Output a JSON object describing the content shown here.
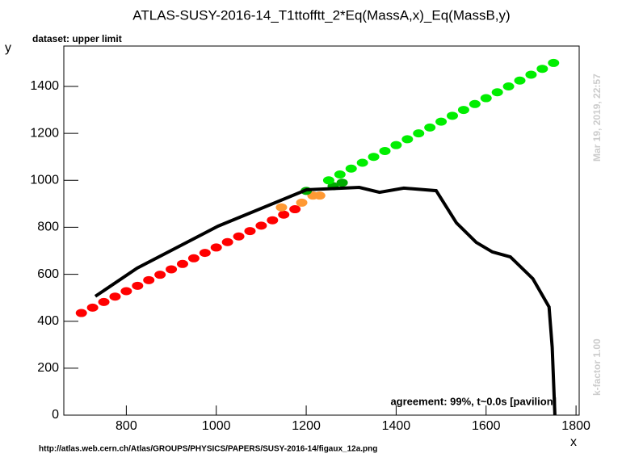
{
  "chart_data": {
    "type": "scatter",
    "title": "ATLAS-SUSY-2016-14_T1ttofftt_2*Eq(MassA,x)_Eq(MassB,y)",
    "subtitle": "dataset: upper limit",
    "xlabel": "x",
    "ylabel": "y",
    "annotations": [
      "agreement: 99%, t~0.0s [pavilion]",
      "Mar 19, 2019, 22:57",
      "k-factor 1.00",
      "http://atlas.web.cern.ch/Atlas/GROUPS/PHYSICS/PAPERS/SUSY-2016-14/figaux_12a.png"
    ],
    "xlim": [
      661,
      1807
    ],
    "ylim": [
      0,
      1572
    ],
    "xticks": [
      800,
      1000,
      1200,
      1400,
      1600,
      1800
    ],
    "yticks": [
      0,
      200,
      400,
      600,
      800,
      1000,
      1200,
      1400
    ],
    "series": [
      {
        "color": "#ff0000",
        "mode": "markers",
        "x": [
          700,
          725,
          750,
          775,
          800,
          825,
          850,
          875,
          900,
          925,
          950,
          975,
          1000,
          1025,
          1050,
          1075,
          1100,
          1125,
          1150,
          1175
        ],
        "values": [
          435,
          458,
          482,
          505,
          528,
          551,
          575,
          598,
          621,
          644,
          668,
          691,
          714,
          737,
          761,
          784,
          807,
          830,
          854,
          877
        ]
      },
      {
        "color": "#ff9933",
        "mode": "markers",
        "x": [
          1145,
          1190,
          1215,
          1230
        ],
        "values": [
          885,
          905,
          935,
          935
        ]
      },
      {
        "color": "#00aa00",
        "mode": "markers",
        "x": [
          1200,
          1260,
          1280
        ],
        "values": [
          955,
          975,
          990
        ]
      },
      {
        "color": "#00ee00",
        "mode": "markers",
        "x": [
          1250,
          1275,
          1300,
          1325,
          1350,
          1375,
          1400,
          1425,
          1450,
          1475,
          1500,
          1525,
          1550,
          1575,
          1600,
          1625,
          1650,
          1675,
          1700,
          1725,
          1750
        ],
        "values": [
          1000,
          1025,
          1050,
          1075,
          1100,
          1125,
          1150,
          1175,
          1200,
          1225,
          1250,
          1275,
          1300,
          1325,
          1350,
          1375,
          1400,
          1425,
          1450,
          1475,
          1500
        ]
      },
      {
        "color": "#000000",
        "mode": "line",
        "x": [
          731,
          824,
          1004,
          1201,
          1318,
          1363,
          1417,
          1489,
          1534,
          1578,
          1614,
          1654,
          1704,
          1740,
          1747,
          1753
        ],
        "values": [
          506,
          626,
          805,
          960,
          970,
          949,
          967,
          956,
          819,
          736,
          695,
          674,
          581,
          461,
          289,
          0
        ]
      }
    ]
  }
}
